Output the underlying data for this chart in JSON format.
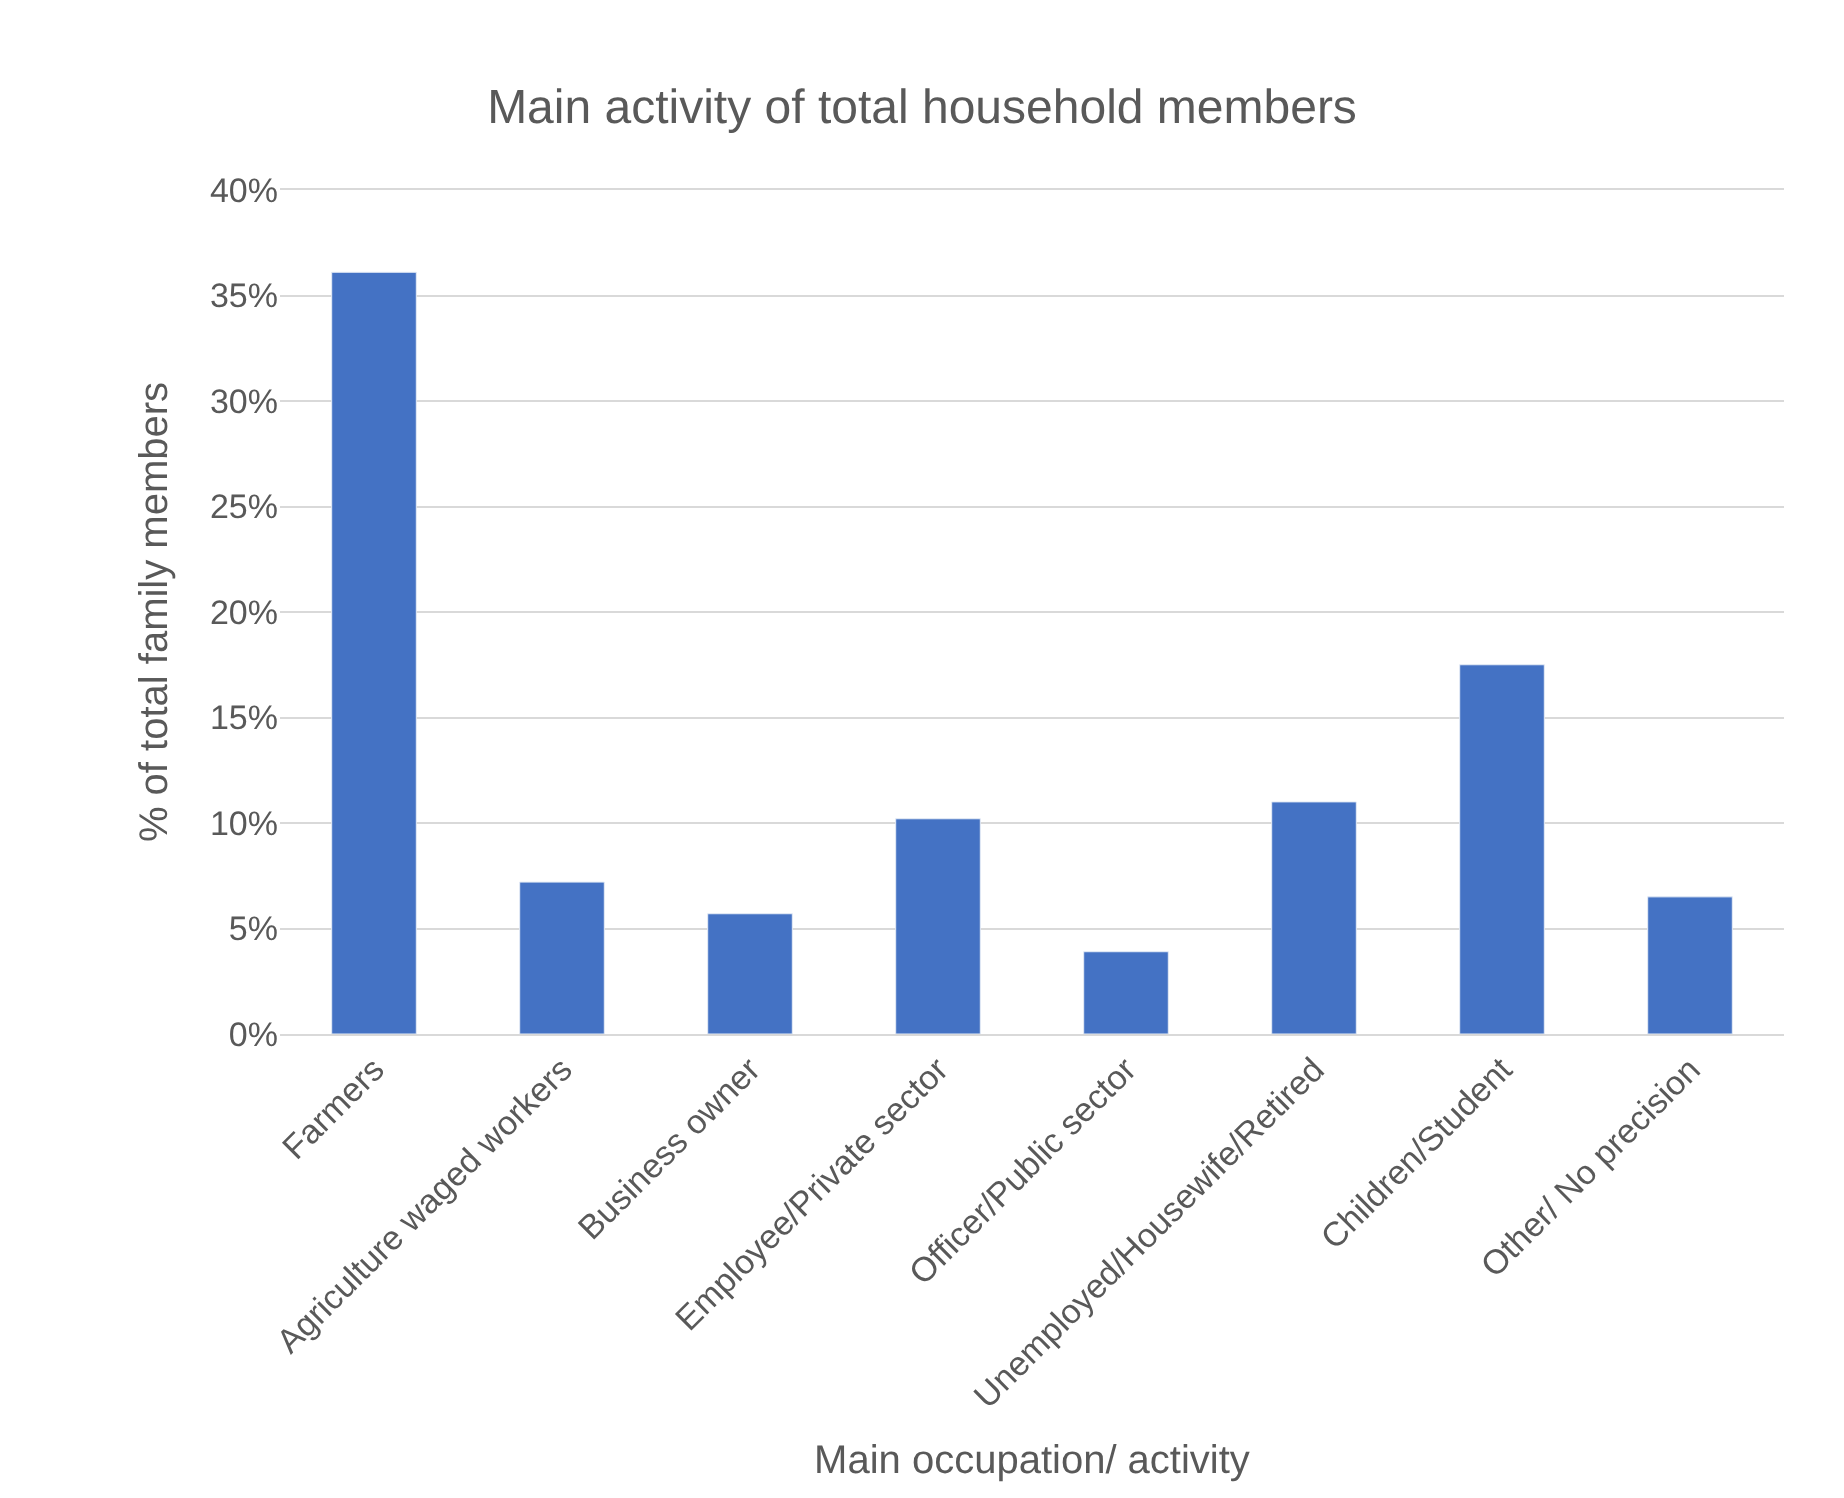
{
  "chart_data": {
    "type": "bar",
    "title": "Main activity of total household members",
    "xlabel": "Main occupation/ activity",
    "ylabel": "% of total family members",
    "categories": [
      "Farmers",
      "Agriculture waged workers",
      "Business owner",
      "Employee/Private sector",
      "Officer/Public sector",
      "Unemployed/Housewife/Retired",
      "Children/Student",
      "Other/ No precision"
    ],
    "values": [
      36.1,
      7.2,
      5.7,
      10.2,
      3.9,
      11.0,
      17.5,
      6.5
    ],
    "color": "#4472c4",
    "ylim": [
      0,
      40
    ],
    "yticks": [
      {
        "value": 0,
        "label": "0%"
      },
      {
        "value": 5,
        "label": "5%"
      },
      {
        "value": 10,
        "label": "10%"
      },
      {
        "value": 15,
        "label": "15%"
      },
      {
        "value": 20,
        "label": "20%"
      },
      {
        "value": 25,
        "label": "25%"
      },
      {
        "value": 30,
        "label": "30%"
      },
      {
        "value": 35,
        "label": "35%"
      },
      {
        "value": 40,
        "label": "40%"
      }
    ],
    "grid": "y"
  }
}
